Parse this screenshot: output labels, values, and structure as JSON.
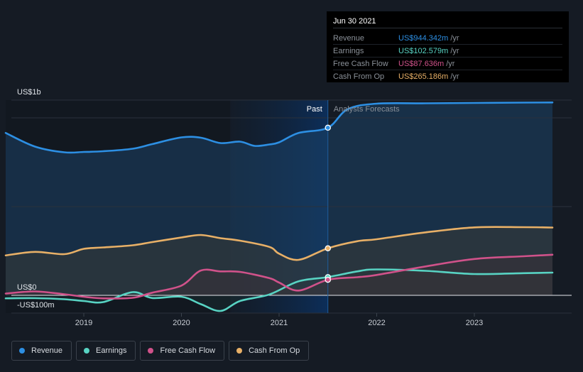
{
  "chart_data": {
    "type": "line",
    "y_axis": {
      "top_label": "US$1b",
      "zero_label": "US$0",
      "bottom_label": "-US$100m",
      "ylim": [
        -100,
        1100
      ]
    },
    "x_ticks": [
      "2019",
      "2020",
      "2021",
      "2022",
      "2023"
    ],
    "divider_labels": {
      "past": "Past",
      "forecast": "Analysts Forecasts"
    },
    "past_end": 2021.5,
    "series": [
      {
        "name": "Revenue",
        "color": "#2d8fe3",
        "points": [
          [
            2018.2,
            915
          ],
          [
            2018.5,
            838
          ],
          [
            2018.8,
            806
          ],
          [
            2019.0,
            808
          ],
          [
            2019.2,
            812
          ],
          [
            2019.5,
            826
          ],
          [
            2019.7,
            852
          ],
          [
            2020.0,
            890
          ],
          [
            2020.2,
            888
          ],
          [
            2020.4,
            858
          ],
          [
            2020.6,
            866
          ],
          [
            2020.75,
            842
          ],
          [
            2020.9,
            850
          ],
          [
            2021.0,
            862
          ],
          [
            2021.2,
            915
          ],
          [
            2021.5,
            944.342
          ],
          [
            2021.7,
            1048
          ],
          [
            2022.0,
            1080
          ],
          [
            2022.5,
            1082
          ],
          [
            2023.0,
            1084
          ],
          [
            2023.5,
            1086
          ],
          [
            2023.8,
            1087
          ]
        ]
      },
      {
        "name": "Earnings",
        "color": "#58d3c3",
        "points": [
          [
            2018.2,
            -17
          ],
          [
            2018.5,
            -16
          ],
          [
            2018.8,
            -22
          ],
          [
            2019.0,
            -32
          ],
          [
            2019.2,
            -38
          ],
          [
            2019.5,
            18
          ],
          [
            2019.7,
            -15
          ],
          [
            2020.0,
            -8
          ],
          [
            2020.2,
            -50
          ],
          [
            2020.4,
            -88
          ],
          [
            2020.6,
            -32
          ],
          [
            2020.9,
            5
          ],
          [
            2021.2,
            79
          ],
          [
            2021.5,
            102.579
          ],
          [
            2021.8,
            135
          ],
          [
            2022.0,
            146
          ],
          [
            2022.5,
            138
          ],
          [
            2023.0,
            120
          ],
          [
            2023.5,
            125
          ],
          [
            2023.8,
            128
          ]
        ]
      },
      {
        "name": "Free Cash Flow",
        "color": "#d0528a",
        "points": [
          [
            2018.2,
            10
          ],
          [
            2018.5,
            22
          ],
          [
            2018.8,
            6
          ],
          [
            2019.0,
            -8
          ],
          [
            2019.2,
            -17
          ],
          [
            2019.5,
            -14
          ],
          [
            2019.7,
            15
          ],
          [
            2020.0,
            55
          ],
          [
            2020.2,
            140
          ],
          [
            2020.4,
            135
          ],
          [
            2020.6,
            132
          ],
          [
            2020.9,
            97
          ],
          [
            2021.0,
            72
          ],
          [
            2021.2,
            27
          ],
          [
            2021.5,
            87.636
          ],
          [
            2021.8,
            102
          ],
          [
            2022.0,
            115
          ],
          [
            2022.5,
            163
          ],
          [
            2023.0,
            205
          ],
          [
            2023.5,
            220
          ],
          [
            2023.8,
            229
          ]
        ]
      },
      {
        "name": "Cash From Op",
        "color": "#e8b067",
        "points": [
          [
            2018.2,
            225
          ],
          [
            2018.5,
            245
          ],
          [
            2018.8,
            232
          ],
          [
            2019.0,
            262
          ],
          [
            2019.2,
            270
          ],
          [
            2019.5,
            282
          ],
          [
            2019.7,
            300
          ],
          [
            2020.0,
            326
          ],
          [
            2020.2,
            340
          ],
          [
            2020.4,
            322
          ],
          [
            2020.6,
            308
          ],
          [
            2020.9,
            273
          ],
          [
            2021.0,
            235
          ],
          [
            2021.2,
            200
          ],
          [
            2021.5,
            265.186
          ],
          [
            2021.8,
            305
          ],
          [
            2022.0,
            316
          ],
          [
            2022.5,
            355
          ],
          [
            2023.0,
            383
          ],
          [
            2023.5,
            384
          ],
          [
            2023.8,
            382
          ]
        ]
      }
    ]
  },
  "tooltip": {
    "date": "Jun 30 2021",
    "rows": [
      {
        "label": "Revenue",
        "value": "US$944.342m",
        "unit": "/yr",
        "color": "#2d8fe3"
      },
      {
        "label": "Earnings",
        "value": "US$102.579m",
        "unit": "/yr",
        "color": "#58d3c3"
      },
      {
        "label": "Free Cash Flow",
        "value": "US$87.636m",
        "unit": "/yr",
        "color": "#d0528a"
      },
      {
        "label": "Cash From Op",
        "value": "US$265.186m",
        "unit": "/yr",
        "color": "#e8b067"
      }
    ]
  },
  "legend": [
    {
      "label": "Revenue",
      "color": "#2d8fe3"
    },
    {
      "label": "Earnings",
      "color": "#58d3c3"
    },
    {
      "label": "Free Cash Flow",
      "color": "#d0528a"
    },
    {
      "label": "Cash From Op",
      "color": "#e8b067"
    }
  ]
}
